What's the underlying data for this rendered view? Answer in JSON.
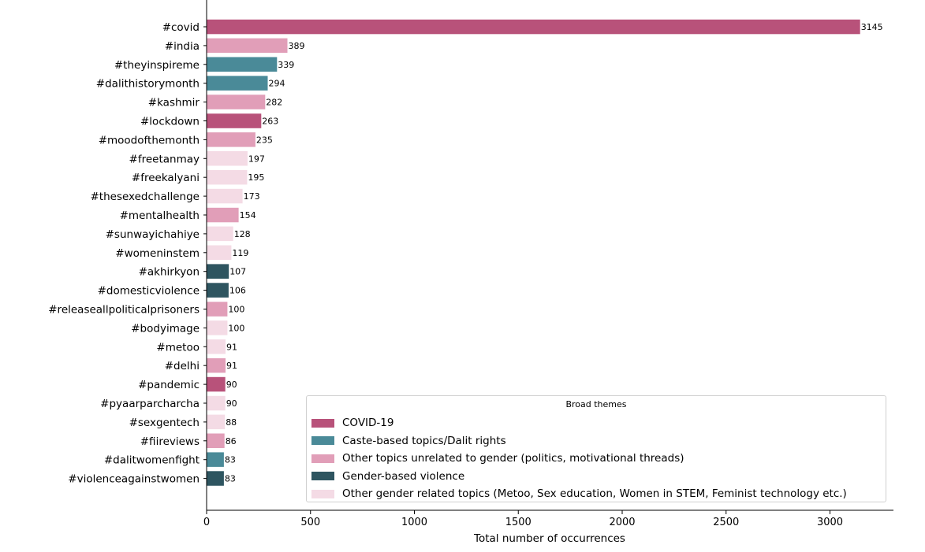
{
  "chart_data": {
    "type": "bar",
    "orientation": "horizontal",
    "title": "",
    "xlabel": "Total number of occurrences",
    "ylabel": "",
    "xlim": [
      0,
      3300
    ],
    "xticks": [
      0,
      500,
      1000,
      1500,
      2000,
      2500,
      3000
    ],
    "grid": false,
    "legend": {
      "title": "Broad themes",
      "position": "lower-right"
    },
    "themes": [
      {
        "name": "COVID-19",
        "color": "#b8527a"
      },
      {
        "name": "Caste-based topics/Dalit rights",
        "color": "#4a8a98"
      },
      {
        "name": "Other topics unrelated to gender (politics, motivational threads)",
        "color": "#e19eb8"
      },
      {
        "name": "Gender-based violence",
        "color": "#2e5560"
      },
      {
        "name": "Other gender related topics (Metoo, Sex education, Women in STEM, Feminist technology etc.)",
        "color": "#f4dbe5"
      }
    ],
    "categories": [
      "#covid",
      "#india",
      "#theyinspireme",
      "#dalithistorymonth",
      "#kashmir",
      "#lockdown",
      "#moodofthemonth",
      "#freetanmay",
      "#freekalyani",
      "#thesexedchallenge",
      "#mentalhealth",
      "#sunwayichahiye",
      "#womeninstem",
      "#akhirkyon",
      "#domesticviolence",
      "#releaseallpoliticalprisoners",
      "#bodyimage",
      "#metoo",
      "#delhi",
      "#pandemic",
      "#pyaarparcharcha",
      "#sexgentech",
      "#fiireviews",
      "#dalitwomenfight",
      "#violenceagainstwomen"
    ],
    "values": [
      3145,
      389,
      339,
      294,
      282,
      263,
      235,
      197,
      195,
      173,
      154,
      128,
      119,
      107,
      106,
      100,
      100,
      91,
      91,
      90,
      90,
      88,
      86,
      83,
      83
    ],
    "theme_index": [
      0,
      2,
      1,
      1,
      2,
      0,
      2,
      4,
      4,
      4,
      2,
      4,
      4,
      3,
      3,
      2,
      4,
      4,
      2,
      0,
      4,
      4,
      2,
      1,
      3
    ]
  }
}
